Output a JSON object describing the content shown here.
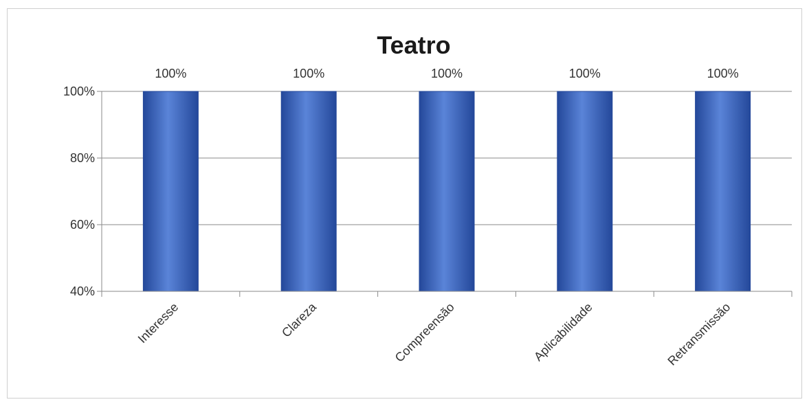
{
  "chart_data": {
    "type": "bar",
    "title": "Teatro",
    "categories": [
      "Interesse",
      "Clareza",
      "Compreensão",
      "Aplicabilidade",
      "Retransmissão"
    ],
    "values": [
      100,
      100,
      100,
      100,
      100
    ],
    "data_labels": [
      "100%",
      "100%",
      "100%",
      "100%",
      "100%"
    ],
    "xlabel": "",
    "ylabel": "",
    "ylim": [
      40,
      100
    ],
    "yticks": [
      40,
      60,
      80,
      100
    ],
    "ytick_labels": [
      "40%",
      "60%",
      "80%",
      "100%"
    ],
    "grid": true,
    "legend": "none",
    "bar_color": "#3a66c4",
    "bar_color_dark": "#24489a",
    "bar_color_light": "#5a84d8"
  }
}
